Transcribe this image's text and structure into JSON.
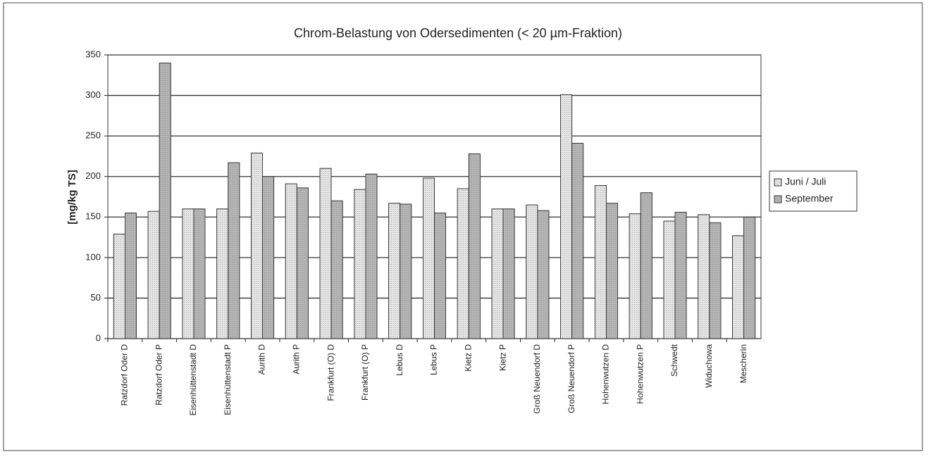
{
  "chart_data": {
    "type": "bar",
    "title": "Chrom-Belastung von Odersedimenten (< 20 µm-Fraktion)",
    "y_label": "[mg/kg TS]",
    "categories": [
      "Ratzdorf Oder D",
      "Ratzdorf Oder P",
      "Eisenhüttenstadt D",
      "Eisenhüttenstadt P",
      "Aurith D",
      "Aurith P",
      "Frankfurt (O) D",
      "Frankfurt (O) P",
      "Lebus D",
      "Lebus P",
      "Kietz D",
      "Kietz P",
      "Groß Neuendorf D",
      "Groß Neuendorf P",
      "Hohenwutzen D",
      "Hohenwutzen P",
      "Schwedt",
      "Widuchowa",
      "Mescherin"
    ],
    "series": [
      {
        "name": "Juni / Juli",
        "color": "#e4e4e4",
        "values": [
          129,
          157,
          160,
          160,
          229,
          191,
          210,
          184,
          167,
          198,
          185,
          160,
          165,
          301,
          189,
          154,
          145,
          153,
          127
        ]
      },
      {
        "name": "September",
        "color": "#b4b4b4",
        "values": [
          155,
          340,
          160,
          217,
          200,
          186,
          170,
          203,
          166,
          155,
          228,
          160,
          158,
          241,
          167,
          180,
          156,
          143,
          150
        ]
      }
    ],
    "ylim": [
      0,
      350
    ],
    "yticks": [
      0,
      50,
      100,
      150,
      200,
      250,
      300,
      350
    ],
    "grid": true,
    "legend": "right"
  }
}
